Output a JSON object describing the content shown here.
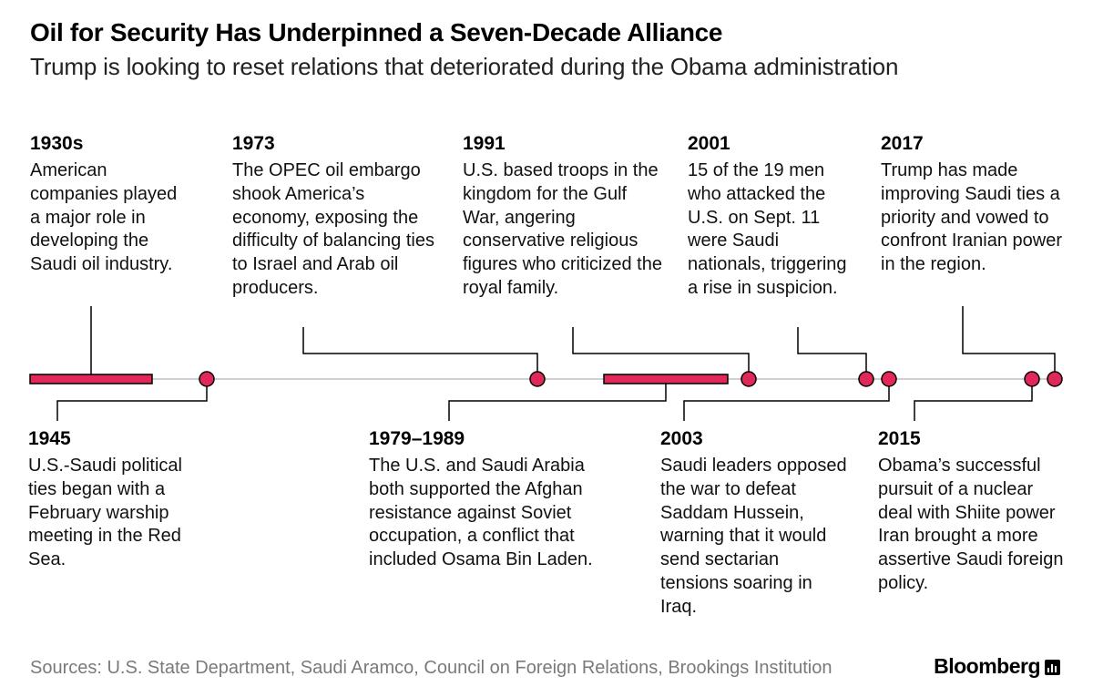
{
  "header": {
    "title": "Oil for Security Has Underpinned a Seven-Decade Alliance",
    "subtitle": "Trump is looking to reset relations that deteriorated during the Obama administration"
  },
  "timeline": {
    "accent_color": "#e0285a",
    "axis_color": "#cfcfcf",
    "events_above": [
      {
        "year": "1930s",
        "text": "American companies played a major role in developing the Saudi oil industry."
      },
      {
        "year": "1973",
        "text": "The OPEC oil embargo shook America’s economy, exposing the difficulty of balancing ties to Israel and Arab oil producers."
      },
      {
        "year": "1991",
        "text": "U.S. based troops in the kingdom for the Gulf War, angering conservative religious figures who criticized the royal family."
      },
      {
        "year": "2001",
        "text": "15 of the 19 men who attacked the U.S. on Sept. 11 were Saudi nationals, triggering a rise in suspicion."
      },
      {
        "year": "2017",
        "text": "Trump has made improving Saudi ties a priority and vowed to confront Iranian power in the region."
      }
    ],
    "events_below": [
      {
        "year": "1945",
        "text": "U.S.-Saudi political ties began with a February warship meeting in the Red Sea."
      },
      {
        "year": "1979–1989",
        "text": "The U.S. and Saudi Arabia both supported the Afghan resistance against Soviet occupation, a conflict that included Osama Bin Laden."
      },
      {
        "year": "2003",
        "text": "Saudi leaders opposed the war to defeat Saddam Hussein, warning that it would send sectarian tensions soaring in Iraq."
      },
      {
        "year": "2015",
        "text": "Obama’s successful pursuit of a nuclear deal with Shiite power Iran brought a more assertive Saudi foreign policy."
      }
    ]
  },
  "footer": {
    "sources": "Sources: U.S. State Department, Saudi Aramco, Council on Foreign Relations, Brookings Institution",
    "brand": "Bloomberg"
  }
}
